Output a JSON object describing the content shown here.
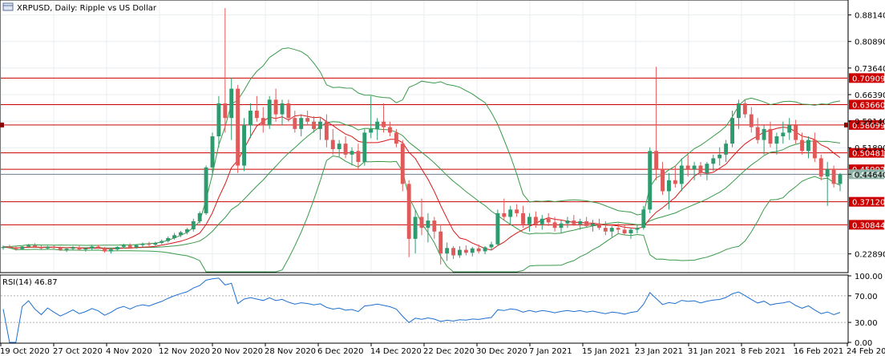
{
  "header": {
    "symbol": "XRPUSD",
    "timeframe": "Daily",
    "description": "Ripple vs US Dollar",
    "title": "XRPUSD, Daily:  Ripple vs US Dollar"
  },
  "rsi_header": {
    "label": "RSI(14) 46.87"
  },
  "colors": {
    "bull": "#2e9b6e",
    "bear": "#e05a5a",
    "level": "#cc0000",
    "bb": "#3a9a4a",
    "ma": "#d81818",
    "rsi": "#1e6fd0",
    "grid": "#e8eef0"
  },
  "chart_data": [
    {
      "type": "candlestick",
      "name": "price",
      "ylim": [
        0.18,
        0.92
      ],
      "y_ticks": [
        {
          "value": 0.8814,
          "label": "0.88140"
        },
        {
          "value": 0.8089,
          "label": "0.80890"
        },
        {
          "value": 0.7364,
          "label": "0.73640"
        },
        {
          "value": 0.6639,
          "label": "0.66390"
        },
        {
          "value": 0.5914,
          "label": "0.59140"
        },
        {
          "value": 0.5189,
          "label": "0.51890"
        },
        {
          "value": 0.4464,
          "label": "0.44640"
        },
        {
          "value": 0.2289,
          "label": "0.22890"
        }
      ],
      "x_ticks": [
        "19 Oct 2020",
        "27 Oct 2020",
        "4 Nov 2020",
        "12 Nov 2020",
        "20 Nov 2020",
        "28 Nov 2020",
        "6 Dec 2020",
        "14 Dec 2020",
        "22 Dec 2020",
        "30 Dec 2020",
        "7 Jan 2021",
        "15 Jan 2021",
        "23 Jan 2021",
        "31 Jan 2021",
        "8 Feb 2021",
        "16 Feb 2021",
        "24 Feb 2021"
      ],
      "levels": [
        {
          "value": 0.70909,
          "label": "0.70909"
        },
        {
          "value": 0.6366,
          "label": "0.63660"
        },
        {
          "value": 0.58099,
          "label": "0.58099"
        },
        {
          "value": 0.50481,
          "label": "0.50481"
        },
        {
          "value": 0.45992,
          "label": "0.45992"
        },
        {
          "value": 0.3712,
          "label": "0.37120"
        },
        {
          "value": 0.30844,
          "label": "0.30844"
        }
      ],
      "last_price": {
        "value": 0.4464,
        "label": "0.44640"
      },
      "candles": [
        [
          0.245,
          0.252,
          0.24,
          0.248
        ],
        [
          0.248,
          0.254,
          0.244,
          0.246
        ],
        [
          0.246,
          0.25,
          0.238,
          0.242
        ],
        [
          0.242,
          0.25,
          0.24,
          0.249
        ],
        [
          0.249,
          0.256,
          0.245,
          0.252
        ],
        [
          0.252,
          0.258,
          0.246,
          0.248
        ],
        [
          0.248,
          0.252,
          0.24,
          0.244
        ],
        [
          0.244,
          0.251,
          0.241,
          0.249
        ],
        [
          0.249,
          0.253,
          0.243,
          0.245
        ],
        [
          0.245,
          0.249,
          0.237,
          0.24
        ],
        [
          0.24,
          0.246,
          0.234,
          0.243
        ],
        [
          0.243,
          0.25,
          0.239,
          0.247
        ],
        [
          0.247,
          0.251,
          0.238,
          0.241
        ],
        [
          0.241,
          0.247,
          0.235,
          0.244
        ],
        [
          0.244,
          0.252,
          0.24,
          0.249
        ],
        [
          0.249,
          0.254,
          0.243,
          0.245
        ],
        [
          0.245,
          0.248,
          0.232,
          0.236
        ],
        [
          0.236,
          0.244,
          0.23,
          0.241
        ],
        [
          0.241,
          0.25,
          0.238,
          0.248
        ],
        [
          0.248,
          0.257,
          0.244,
          0.252
        ],
        [
          0.252,
          0.258,
          0.244,
          0.247
        ],
        [
          0.247,
          0.255,
          0.243,
          0.253
        ],
        [
          0.253,
          0.26,
          0.248,
          0.256
        ],
        [
          0.256,
          0.262,
          0.25,
          0.254
        ],
        [
          0.254,
          0.262,
          0.251,
          0.259
        ],
        [
          0.259,
          0.268,
          0.255,
          0.264
        ],
        [
          0.264,
          0.276,
          0.26,
          0.272
        ],
        [
          0.272,
          0.286,
          0.268,
          0.28
        ],
        [
          0.28,
          0.292,
          0.275,
          0.288
        ],
        [
          0.288,
          0.3,
          0.282,
          0.296
        ],
        [
          0.296,
          0.325,
          0.29,
          0.318
        ],
        [
          0.318,
          0.345,
          0.312,
          0.34
        ],
        [
          0.34,
          0.47,
          0.335,
          0.465
        ],
        [
          0.465,
          0.56,
          0.45,
          0.55
        ],
        [
          0.55,
          0.66,
          0.52,
          0.64
        ],
        [
          0.64,
          0.9,
          0.56,
          0.6
        ],
        [
          0.6,
          0.71,
          0.54,
          0.68
        ],
        [
          0.68,
          0.69,
          0.45,
          0.47
        ],
        [
          0.47,
          0.6,
          0.455,
          0.58
        ],
        [
          0.58,
          0.64,
          0.545,
          0.62
        ],
        [
          0.62,
          0.66,
          0.59,
          0.6
        ],
        [
          0.6,
          0.63,
          0.56,
          0.58
        ],
        [
          0.58,
          0.66,
          0.57,
          0.65
        ],
        [
          0.65,
          0.68,
          0.59,
          0.61
        ],
        [
          0.61,
          0.65,
          0.58,
          0.64
        ],
        [
          0.64,
          0.65,
          0.59,
          0.6
        ],
        [
          0.6,
          0.62,
          0.56,
          0.57
        ],
        [
          0.57,
          0.61,
          0.55,
          0.6
        ],
        [
          0.6,
          0.62,
          0.58,
          0.59
        ],
        [
          0.59,
          0.605,
          0.56,
          0.57
        ],
        [
          0.57,
          0.6,
          0.54,
          0.59
        ],
        [
          0.59,
          0.61,
          0.52,
          0.54
        ],
        [
          0.54,
          0.57,
          0.5,
          0.515
        ],
        [
          0.515,
          0.54,
          0.495,
          0.53
        ],
        [
          0.53,
          0.55,
          0.49,
          0.5
        ],
        [
          0.5,
          0.52,
          0.47,
          0.51
        ],
        [
          0.51,
          0.53,
          0.46,
          0.48
        ],
        [
          0.48,
          0.57,
          0.47,
          0.56
        ],
        [
          0.56,
          0.66,
          0.545,
          0.57
        ],
        [
          0.57,
          0.6,
          0.54,
          0.59
        ],
        [
          0.59,
          0.64,
          0.56,
          0.575
        ],
        [
          0.575,
          0.59,
          0.55,
          0.56
        ],
        [
          0.56,
          0.57,
          0.52,
          0.53
        ],
        [
          0.53,
          0.54,
          0.4,
          0.42
        ],
        [
          0.42,
          0.43,
          0.22,
          0.27
        ],
        [
          0.27,
          0.35,
          0.23,
          0.33
        ],
        [
          0.33,
          0.38,
          0.28,
          0.3
        ],
        [
          0.3,
          0.34,
          0.26,
          0.32
        ],
        [
          0.32,
          0.33,
          0.27,
          0.29
        ],
        [
          0.29,
          0.31,
          0.2,
          0.23
        ],
        [
          0.23,
          0.26,
          0.21,
          0.245
        ],
        [
          0.245,
          0.25,
          0.215,
          0.225
        ],
        [
          0.225,
          0.25,
          0.218,
          0.24
        ],
        [
          0.24,
          0.252,
          0.225,
          0.232
        ],
        [
          0.232,
          0.248,
          0.222,
          0.244
        ],
        [
          0.244,
          0.255,
          0.23,
          0.236
        ],
        [
          0.236,
          0.25,
          0.228,
          0.247
        ],
        [
          0.247,
          0.262,
          0.238,
          0.255
        ],
        [
          0.255,
          0.35,
          0.25,
          0.34
        ],
        [
          0.34,
          0.38,
          0.32,
          0.33
        ],
        [
          0.33,
          0.36,
          0.31,
          0.35
        ],
        [
          0.35,
          0.365,
          0.33,
          0.34
        ],
        [
          0.34,
          0.36,
          0.3,
          0.31
        ],
        [
          0.31,
          0.34,
          0.29,
          0.33
        ],
        [
          0.33,
          0.345,
          0.3,
          0.31
        ],
        [
          0.31,
          0.335,
          0.295,
          0.325
        ],
        [
          0.325,
          0.34,
          0.305,
          0.315
        ],
        [
          0.315,
          0.33,
          0.29,
          0.3
        ],
        [
          0.3,
          0.32,
          0.285,
          0.312
        ],
        [
          0.312,
          0.33,
          0.3,
          0.32
        ],
        [
          0.32,
          0.335,
          0.305,
          0.31
        ],
        [
          0.31,
          0.325,
          0.295,
          0.318
        ],
        [
          0.318,
          0.33,
          0.3,
          0.305
        ],
        [
          0.305,
          0.322,
          0.29,
          0.312
        ],
        [
          0.312,
          0.325,
          0.295,
          0.3
        ],
        [
          0.3,
          0.318,
          0.28,
          0.29
        ],
        [
          0.29,
          0.305,
          0.275,
          0.3
        ],
        [
          0.3,
          0.312,
          0.285,
          0.295
        ],
        [
          0.295,
          0.308,
          0.28,
          0.285
        ],
        [
          0.285,
          0.3,
          0.27,
          0.295
        ],
        [
          0.295,
          0.308,
          0.285,
          0.3
        ],
        [
          0.3,
          0.36,
          0.295,
          0.35
        ],
        [
          0.35,
          0.52,
          0.34,
          0.51
        ],
        [
          0.51,
          0.74,
          0.43,
          0.46
        ],
        [
          0.46,
          0.48,
          0.39,
          0.4
        ],
        [
          0.4,
          0.45,
          0.35,
          0.43
        ],
        [
          0.43,
          0.47,
          0.41,
          0.42
        ],
        [
          0.42,
          0.49,
          0.4,
          0.47
        ],
        [
          0.47,
          0.5,
          0.44,
          0.46
        ],
        [
          0.46,
          0.48,
          0.43,
          0.47
        ],
        [
          0.47,
          0.48,
          0.44,
          0.45
        ],
        [
          0.45,
          0.48,
          0.43,
          0.475
        ],
        [
          0.475,
          0.5,
          0.455,
          0.49
        ],
        [
          0.49,
          0.52,
          0.47,
          0.5
        ],
        [
          0.5,
          0.54,
          0.48,
          0.53
        ],
        [
          0.53,
          0.62,
          0.52,
          0.6
        ],
        [
          0.6,
          0.65,
          0.57,
          0.64
        ],
        [
          0.64,
          0.65,
          0.6,
          0.61
        ],
        [
          0.61,
          0.63,
          0.56,
          0.575
        ],
        [
          0.575,
          0.6,
          0.53,
          0.54
        ],
        [
          0.54,
          0.58,
          0.5,
          0.57
        ],
        [
          0.57,
          0.59,
          0.52,
          0.53
        ],
        [
          0.53,
          0.56,
          0.5,
          0.55
        ],
        [
          0.55,
          0.59,
          0.53,
          0.56
        ],
        [
          0.56,
          0.6,
          0.54,
          0.58
        ],
        [
          0.58,
          0.595,
          0.53,
          0.54
        ],
        [
          0.54,
          0.56,
          0.5,
          0.51
        ],
        [
          0.51,
          0.55,
          0.49,
          0.54
        ],
        [
          0.54,
          0.56,
          0.48,
          0.49
        ],
        [
          0.49,
          0.5,
          0.43,
          0.44
        ],
        [
          0.44,
          0.48,
          0.36,
          0.46
        ],
        [
          0.46,
          0.47,
          0.41,
          0.42
        ],
        [
          0.42,
          0.45,
          0.4,
          0.446
        ]
      ]
    },
    {
      "type": "line",
      "name": "RSI(14)",
      "ylim": [
        0,
        100
      ],
      "y_ticks": [
        {
          "value": 100,
          "label": "100.00"
        },
        {
          "value": 70,
          "label": "70.00"
        },
        {
          "value": 30,
          "label": "30.00"
        },
        {
          "value": 0,
          "label": "0.00"
        }
      ],
      "levels": [
        70,
        30
      ]
    }
  ]
}
